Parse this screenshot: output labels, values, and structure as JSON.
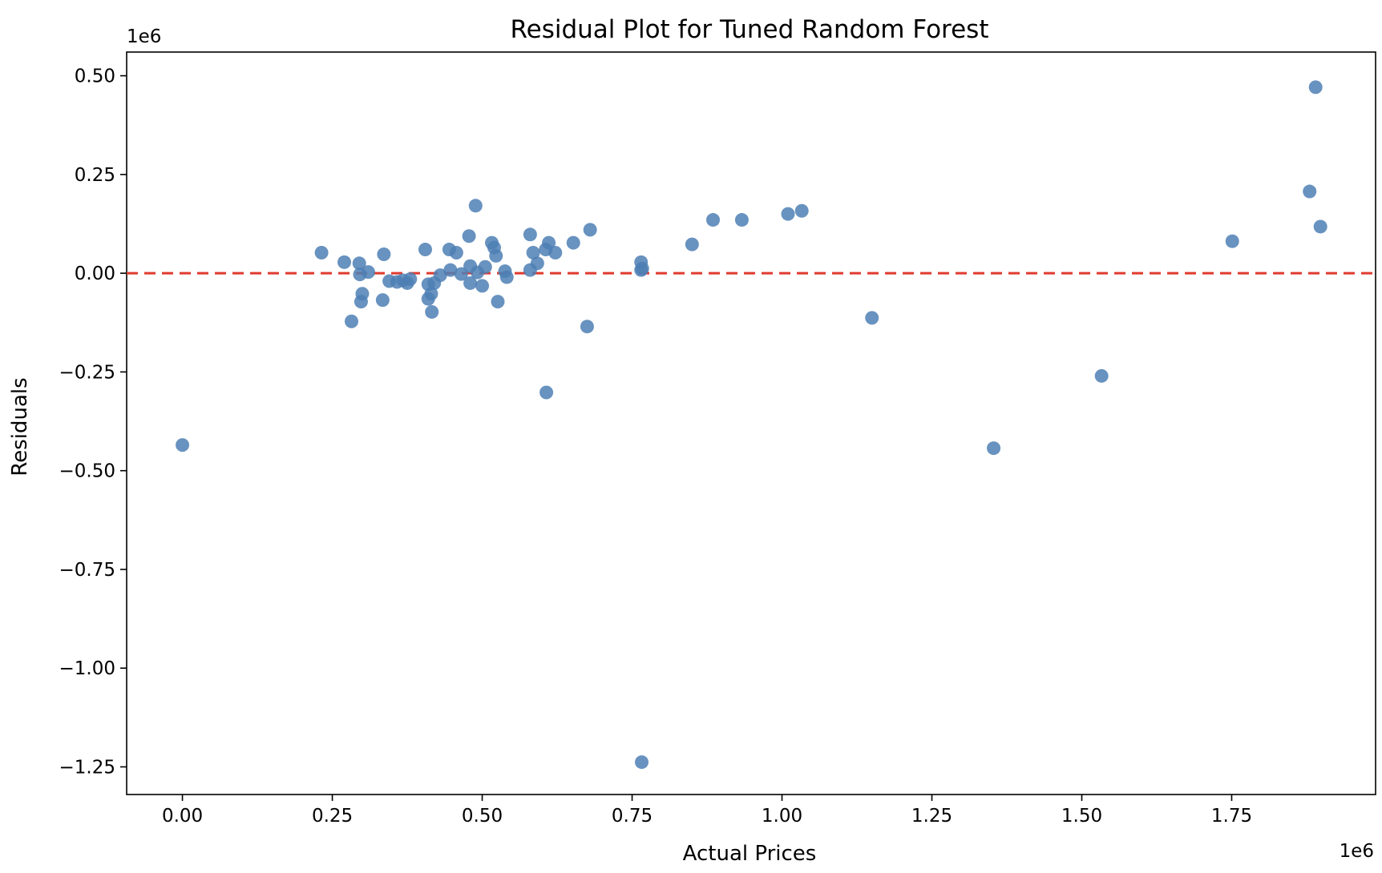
{
  "chart_data": {
    "type": "scatter",
    "title": "Residual Plot for Tuned Random Forest",
    "xlabel": "Actual Prices",
    "ylabel": "Residuals",
    "x_offset_label": "1e6",
    "y_offset_label": "1e6",
    "xlim": [
      -0.093,
      1.99
    ],
    "ylim": [
      -1.32,
      0.56
    ],
    "x_ticks": [
      0.0,
      0.25,
      0.5,
      0.75,
      1.0,
      1.25,
      1.5,
      1.75
    ],
    "x_tick_labels": [
      "0.00",
      "0.25",
      "0.50",
      "0.75",
      "1.00",
      "1.25",
      "1.50",
      "1.75"
    ],
    "y_ticks": [
      0.5,
      0.25,
      0.0,
      -0.25,
      -0.5,
      -0.75,
      -1.0,
      -1.25
    ],
    "y_tick_labels": [
      "0.50",
      "0.25",
      "0.00",
      "−0.25",
      "−0.50",
      "−0.75",
      "−1.00",
      "−1.25"
    ],
    "reference_line": {
      "y": 0.0,
      "style": "dashed",
      "color": "#e03a2f"
    },
    "marker_color": "#4e7fb4",
    "grid": false,
    "legend": "none",
    "points": [
      {
        "x": 0.0,
        "y": -0.435
      },
      {
        "x": 0.232,
        "y": 0.052
      },
      {
        "x": 0.27,
        "y": 0.028
      },
      {
        "x": 0.282,
        "y": -0.122
      },
      {
        "x": 0.295,
        "y": 0.025
      },
      {
        "x": 0.296,
        "y": -0.003
      },
      {
        "x": 0.298,
        "y": -0.072
      },
      {
        "x": 0.3,
        "y": -0.052
      },
      {
        "x": 0.31,
        "y": 0.003
      },
      {
        "x": 0.334,
        "y": -0.068
      },
      {
        "x": 0.336,
        "y": 0.048
      },
      {
        "x": 0.345,
        "y": -0.02
      },
      {
        "x": 0.358,
        "y": -0.022
      },
      {
        "x": 0.368,
        "y": -0.018
      },
      {
        "x": 0.375,
        "y": -0.025
      },
      {
        "x": 0.38,
        "y": -0.015
      },
      {
        "x": 0.405,
        "y": 0.06
      },
      {
        "x": 0.41,
        "y": -0.028
      },
      {
        "x": 0.41,
        "y": -0.065
      },
      {
        "x": 0.415,
        "y": -0.052
      },
      {
        "x": 0.416,
        "y": -0.098
      },
      {
        "x": 0.42,
        "y": -0.025
      },
      {
        "x": 0.43,
        "y": -0.005
      },
      {
        "x": 0.445,
        "y": 0.06
      },
      {
        "x": 0.447,
        "y": 0.008
      },
      {
        "x": 0.457,
        "y": 0.052
      },
      {
        "x": 0.465,
        "y": -0.002
      },
      {
        "x": 0.478,
        "y": 0.094
      },
      {
        "x": 0.48,
        "y": -0.025
      },
      {
        "x": 0.48,
        "y": 0.018
      },
      {
        "x": 0.489,
        "y": 0.171
      },
      {
        "x": 0.492,
        "y": 0.002
      },
      {
        "x": 0.5,
        "y": -0.032
      },
      {
        "x": 0.505,
        "y": 0.016
      },
      {
        "x": 0.516,
        "y": 0.077
      },
      {
        "x": 0.52,
        "y": 0.065
      },
      {
        "x": 0.523,
        "y": 0.044
      },
      {
        "x": 0.526,
        "y": -0.072
      },
      {
        "x": 0.538,
        "y": 0.005
      },
      {
        "x": 0.541,
        "y": -0.01
      },
      {
        "x": 0.58,
        "y": 0.098
      },
      {
        "x": 0.58,
        "y": 0.008
      },
      {
        "x": 0.585,
        "y": 0.052
      },
      {
        "x": 0.592,
        "y": 0.025
      },
      {
        "x": 0.606,
        "y": 0.06
      },
      {
        "x": 0.607,
        "y": -0.302
      },
      {
        "x": 0.611,
        "y": 0.077
      },
      {
        "x": 0.622,
        "y": 0.052
      },
      {
        "x": 0.652,
        "y": 0.077
      },
      {
        "x": 0.675,
        "y": -0.135
      },
      {
        "x": 0.68,
        "y": 0.11
      },
      {
        "x": 0.765,
        "y": 0.028
      },
      {
        "x": 0.765,
        "y": 0.008
      },
      {
        "x": 0.767,
        "y": 0.012
      },
      {
        "x": 0.766,
        "y": -1.238
      },
      {
        "x": 0.85,
        "y": 0.073
      },
      {
        "x": 0.885,
        "y": 0.135
      },
      {
        "x": 0.933,
        "y": 0.135
      },
      {
        "x": 1.01,
        "y": 0.15
      },
      {
        "x": 1.033,
        "y": 0.158
      },
      {
        "x": 1.15,
        "y": -0.113
      },
      {
        "x": 1.353,
        "y": -0.443
      },
      {
        "x": 1.533,
        "y": -0.26
      },
      {
        "x": 1.751,
        "y": 0.081
      },
      {
        "x": 1.88,
        "y": 0.207
      },
      {
        "x": 1.89,
        "y": 0.471
      },
      {
        "x": 1.898,
        "y": 0.118
      }
    ]
  }
}
